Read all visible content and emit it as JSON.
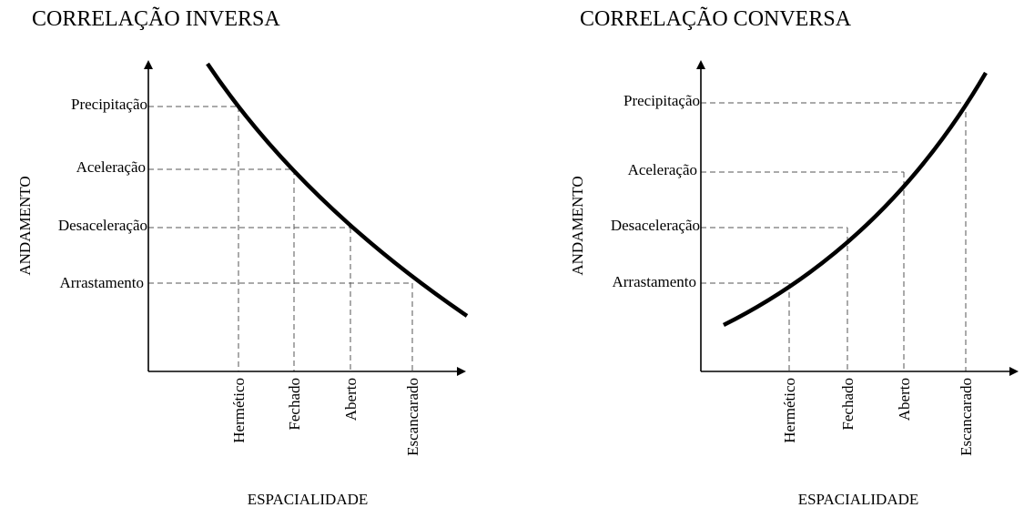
{
  "panels": [
    {
      "title": "CORRELAÇÃO INVERSA",
      "y_axis_label": "ANDAMENTO",
      "x_axis_label": "ESPACIALIDADE",
      "y_levels": [
        "Arrastamento",
        "Desaceleração",
        "Aceleração",
        "Precipitação"
      ],
      "x_levels": [
        "Hermético",
        "Fechado",
        "Aberto",
        "Escancarado"
      ],
      "relation": "decreasing"
    },
    {
      "title": "CORRELAÇÃO CONVERSA",
      "y_axis_label": "ANDAMENTO",
      "x_axis_label": "ESPACIALIDADE",
      "y_levels": [
        "Arrastamento",
        "Desaceleração",
        "Aceleração",
        "Precipitação"
      ],
      "x_levels": [
        "Hermético",
        "Fechado",
        "Aberto",
        "Escancarado"
      ],
      "relation": "increasing"
    }
  ],
  "colors": {
    "ink": "#000000",
    "guides": "#555555",
    "background": "#ffffff"
  }
}
